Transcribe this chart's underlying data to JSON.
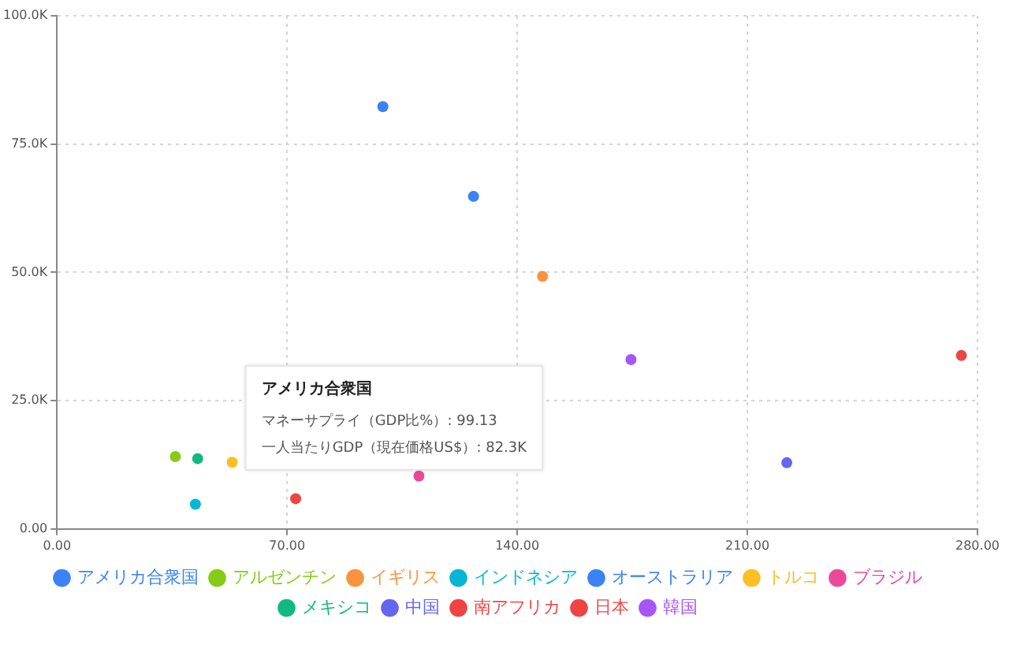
{
  "chart_data": {
    "type": "scatter",
    "series": [
      {
        "name": "アメリカ合衆国",
        "color": "#3b82f6",
        "x": [
          99.13
        ],
        "values": [
          82300
        ]
      },
      {
        "name": "アルゼンチン",
        "color": "#84cc16",
        "x": [
          36.0
        ],
        "values": [
          14100
        ]
      },
      {
        "name": "イギリス",
        "color": "#fb923c",
        "x": [
          147.7
        ],
        "values": [
          49200
        ]
      },
      {
        "name": "インドネシア",
        "color": "#06b6d4",
        "x": [
          42.1
        ],
        "values": [
          4800
        ]
      },
      {
        "name": "オーストラリア",
        "color": "#3b82f6",
        "x": [
          126.7
        ],
        "values": [
          64800
        ]
      },
      {
        "name": "トルコ",
        "color": "#fbbf24",
        "x": [
          53.3
        ],
        "values": [
          13000
        ]
      },
      {
        "name": "ブラジル",
        "color": "#ec4899",
        "x": [
          110.1
        ],
        "values": [
          10300
        ]
      },
      {
        "name": "メキシコ",
        "color": "#10b981",
        "x": [
          42.8
        ],
        "values": [
          13700
        ]
      },
      {
        "name": "中国",
        "color": "#6366f1",
        "x": [
          222.0
        ],
        "values": [
          12900
        ]
      },
      {
        "name": "南アフリカ",
        "color": "#ef4444",
        "x": [
          275.1
        ],
        "values": [
          33800
        ]
      },
      {
        "name": "日本",
        "color": "#ef4444",
        "x": [
          72.6
        ],
        "values": [
          5900
        ]
      },
      {
        "name": "韓国",
        "color": "#a855f7",
        "x": [
          174.6
        ],
        "values": [
          33000
        ]
      }
    ],
    "xlim": [
      0,
      280
    ],
    "xticks": [
      {
        "value": 0,
        "label": "0.00"
      },
      {
        "value": 70,
        "label": "70.00"
      },
      {
        "value": 140,
        "label": "140.00"
      },
      {
        "value": 210,
        "label": "210.00"
      },
      {
        "value": 280,
        "label": "280.00"
      }
    ],
    "ylim": [
      0,
      100000
    ],
    "yticks": [
      {
        "value": 0,
        "label": "0.00"
      },
      {
        "value": 25000,
        "label": "25.0K"
      },
      {
        "value": 50000,
        "label": "50.0K"
      },
      {
        "value": 75000,
        "label": "75.0K"
      },
      {
        "value": 100000,
        "label": "100.0K"
      }
    ],
    "grid": true,
    "legend": "bottom",
    "marker": "circle",
    "annotations": [
      "アメリカ合衆国",
      "マネーサプライ（GDP比%）: 99.13",
      "一人当たりGDP（現在価格US$）: 82.3K"
    ]
  }
}
